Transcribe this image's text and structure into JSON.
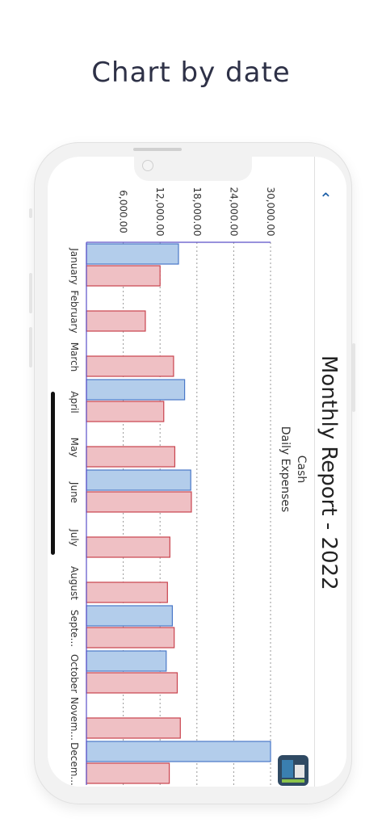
{
  "page_heading": "Chart by date",
  "app": {
    "title": "Monthly Report - 2022",
    "subtitle_account": "Cash",
    "subtitle_category": "Daily Expenses",
    "back_icon": "chevron-up-icon",
    "app_icon": "report-app-icon"
  },
  "colors": {
    "blue_fill": "#b3cdeb",
    "blue_stroke": "#4a78c8",
    "red_fill": "#efc0c4",
    "red_stroke": "#c9434e",
    "axis": "#5b4fc7",
    "grid": "#999999",
    "accent": "#1b5fa8"
  },
  "chart_data": {
    "type": "bar",
    "orientation": "horizontal",
    "title": "Monthly Report - 2022",
    "subtitle": [
      "Cash",
      "Daily Expenses"
    ],
    "categories": [
      "January",
      "February",
      "March",
      "April",
      "May",
      "June",
      "July",
      "August",
      "Septe...",
      "October",
      "Novem...",
      "Decem..."
    ],
    "xlim": [
      0,
      30000
    ],
    "ticks": [
      6000,
      12000,
      18000,
      24000,
      30000
    ],
    "tick_labels": [
      "6,000.00",
      "12,000.00",
      "18,000.00",
      "24,000.00",
      "30,000.00"
    ],
    "grid": true,
    "legend": "none",
    "series": [
      {
        "color": "blue",
        "values": [
          15000,
          null,
          null,
          16000,
          null,
          17000,
          null,
          null,
          14000,
          13000,
          null,
          30000
        ]
      },
      {
        "color": "red",
        "values": [
          12000,
          9600,
          14200,
          12600,
          14400,
          17100,
          13600,
          13200,
          14300,
          14800,
          15300,
          13500
        ]
      }
    ]
  }
}
